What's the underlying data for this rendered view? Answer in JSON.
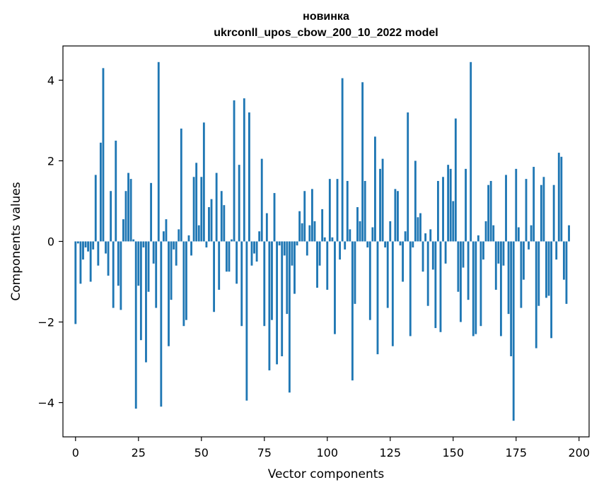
{
  "chart_data": {
    "type": "bar",
    "title": "новинка",
    "subtitle": "ukrconll_upos_cbow_200_10_2022 model",
    "xlabel": "Vector components",
    "ylabel": "Components values",
    "xlim": [
      -5,
      204
    ],
    "ylim": [
      -4.85,
      4.85
    ],
    "xticks": [
      0,
      25,
      50,
      75,
      100,
      125,
      150,
      175,
      200
    ],
    "xtick_labels": [
      "0",
      "25",
      "50",
      "75",
      "100",
      "125",
      "150",
      "175",
      "200"
    ],
    "yticks": [
      -4,
      -2,
      0,
      2,
      4
    ],
    "ytick_labels": [
      "−4",
      "−2",
      "0",
      "2",
      "4"
    ],
    "grid": false,
    "bar_color": "#1f77b4",
    "values": [
      -2.05,
      -0.05,
      -1.05,
      -0.45,
      -0.15,
      -0.25,
      -1.0,
      -0.2,
      1.65,
      -0.6,
      2.45,
      4.3,
      -0.3,
      -0.85,
      1.25,
      -1.65,
      2.5,
      -1.1,
      -1.7,
      0.55,
      1.25,
      1.7,
      1.55,
      0.05,
      -4.15,
      -1.1,
      -2.45,
      -0.15,
      -3.0,
      -1.25,
      1.45,
      -0.55,
      -1.65,
      4.45,
      -4.1,
      0.25,
      0.55,
      -2.6,
      -1.45,
      -0.2,
      -0.6,
      0.3,
      2.8,
      -2.1,
      -1.95,
      0.15,
      -0.35,
      1.6,
      1.95,
      0.4,
      1.6,
      2.95,
      -0.15,
      0.85,
      1.05,
      -1.75,
      1.7,
      -1.2,
      1.25,
      0.9,
      -0.75,
      -0.75,
      0.05,
      3.5,
      -1.05,
      1.9,
      -2.1,
      3.55,
      -3.95,
      3.2,
      -0.6,
      -0.3,
      -0.5,
      0.25,
      2.05,
      -2.1,
      0.7,
      -3.2,
      -1.95,
      1.2,
      -3.05,
      -0.1,
      -2.85,
      -0.35,
      -1.8,
      -3.75,
      -0.6,
      -1.3,
      -0.1,
      0.75,
      0.45,
      1.25,
      -0.35,
      0.4,
      1.3,
      0.5,
      -1.15,
      -0.6,
      0.8,
      0.1,
      -1.2,
      1.55,
      0.1,
      -2.3,
      1.55,
      -0.45,
      4.05,
      -0.2,
      1.5,
      0.3,
      -3.45,
      -1.55,
      0.85,
      0.5,
      3.95,
      1.5,
      -0.15,
      -1.95,
      0.35,
      2.6,
      -2.8,
      1.8,
      2.05,
      -0.15,
      -1.65,
      0.5,
      -2.6,
      1.3,
      1.25,
      -0.1,
      -1.0,
      0.25,
      3.2,
      -2.35,
      -0.15,
      2.0,
      0.6,
      0.7,
      -0.75,
      0.2,
      -1.6,
      0.3,
      -0.7,
      -2.15,
      1.5,
      -2.25,
      1.6,
      -0.55,
      1.9,
      1.8,
      1.0,
      3.05,
      -1.25,
      -2.0,
      -0.65,
      1.8,
      -1.45,
      4.45,
      -2.35,
      -2.3,
      0.15,
      -2.1,
      -0.45,
      0.5,
      1.4,
      1.5,
      0.4,
      -1.2,
      -0.55,
      -2.35,
      -0.6,
      1.65,
      -1.8,
      -2.85,
      -4.45,
      1.8,
      0.35,
      -1.65,
      -0.95,
      1.55,
      -0.2,
      0.4,
      1.85,
      -2.65,
      -1.6,
      1.4,
      1.6,
      -1.4,
      -1.35,
      -2.4,
      1.4,
      -0.45,
      2.2,
      2.1,
      -0.95,
      -1.55,
      0.4
    ]
  }
}
